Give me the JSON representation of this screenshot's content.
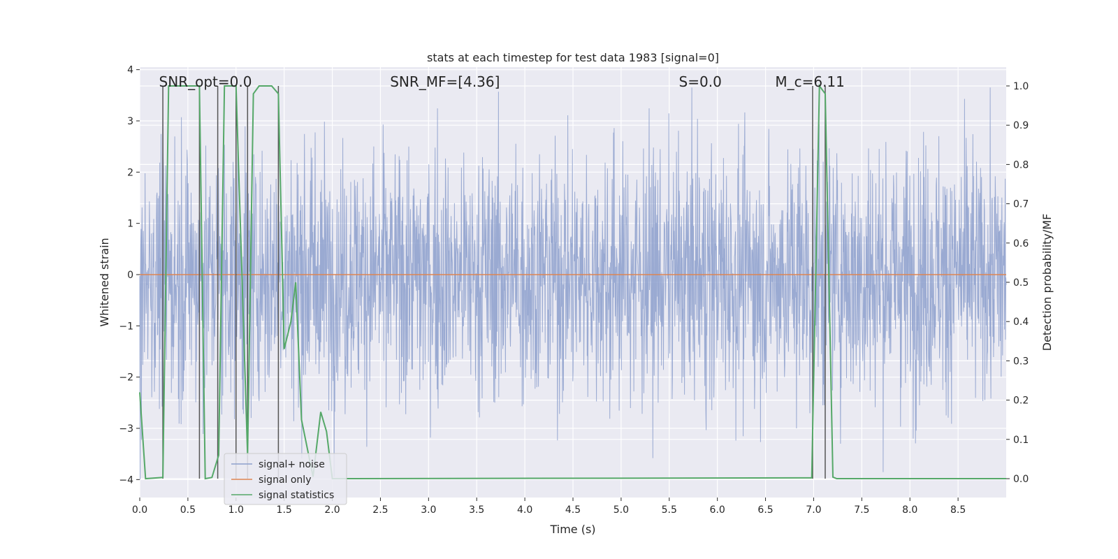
{
  "chart_data": {
    "type": "line",
    "title": "stats at each timestep for test data 1983 [signal=0]",
    "xlabel": "Time (s)",
    "ylabel": "Whitened strain",
    "ylabel_right": "Detection probability/MF",
    "xlim": [
      0,
      9.0
    ],
    "ylim": [
      -4.35,
      4.05
    ],
    "ylim_right": [
      -0.048,
      1.048
    ],
    "x_ticks": [
      "0.0",
      "0.5",
      "1.0",
      "1.5",
      "2.0",
      "2.5",
      "3.0",
      "3.5",
      "4.0",
      "4.5",
      "5.0",
      "5.5",
      "6.0",
      "6.5",
      "7.0",
      "7.5",
      "8.0",
      "8.5"
    ],
    "x_tick_values": [
      0,
      0.5,
      1,
      1.5,
      2,
      2.5,
      3,
      3.5,
      4,
      4.5,
      5,
      5.5,
      6,
      6.5,
      7,
      7.5,
      8,
      8.5
    ],
    "y_ticks": [
      "−4",
      "−3",
      "−2",
      "−1",
      "0",
      "1",
      "2",
      "3",
      "4"
    ],
    "y_tick_values": [
      -4,
      -3,
      -2,
      -1,
      0,
      1,
      2,
      3,
      4
    ],
    "y_right_ticks": [
      "0.0",
      "0.1",
      "0.2",
      "0.3",
      "0.4",
      "0.5",
      "0.6",
      "0.7",
      "0.8",
      "0.9",
      "1.0"
    ],
    "y_right_tick_values": [
      0,
      0.1,
      0.2,
      0.3,
      0.4,
      0.5,
      0.6,
      0.7,
      0.8,
      0.9,
      1.0
    ],
    "grid": true,
    "legend_position": "lower-left",
    "annotations": [
      {
        "label": "SNR_opt=0.0",
        "x": 0.2
      },
      {
        "label": "SNR_MF=[4.36]",
        "x": 2.6
      },
      {
        "label": "S=0.0",
        "x": 5.6
      },
      {
        "label": "M_c=6.11",
        "x": 6.6
      }
    ],
    "series": [
      {
        "name": "signal+ noise",
        "color": "#8c9fcd",
        "kind": "noise",
        "envelope": {
          "typical_abs": 1.3,
          "peak_max": 3.65,
          "peak_min": -4.0
        }
      },
      {
        "name": "signal only",
        "color": "#dd8452",
        "x": [
          0,
          9.0
        ],
        "y": [
          0,
          0
        ]
      },
      {
        "name": "signal statistics",
        "color": "#55a868",
        "axis": "right",
        "x": [
          0,
          0.06,
          0.24,
          0.3,
          0.62,
          0.68,
          0.75,
          0.82,
          0.88,
          1.0,
          1.12,
          1.18,
          1.24,
          1.37,
          1.44,
          1.5,
          1.57,
          1.62,
          1.68,
          1.8,
          1.88,
          1.94,
          2.0,
          2.1,
          6.98,
          7.06,
          7.12,
          7.2,
          7.24,
          9.0
        ],
        "y": [
          0.22,
          0.0,
          0.003,
          1.0,
          1.0,
          0.0,
          0.003,
          0.06,
          1.0,
          1.0,
          0.06,
          0.98,
          1.0,
          1.0,
          0.98,
          0.33,
          0.4,
          0.5,
          0.15,
          0.005,
          0.17,
          0.12,
          0.0,
          0.0,
          0.002,
          1.0,
          0.98,
          0.004,
          0.0,
          0.0
        ]
      }
    ],
    "vertical_markers": [
      0.24,
      0.62,
      0.81,
      1.0,
      1.12,
      1.44,
      6.99,
      7.12
    ]
  }
}
